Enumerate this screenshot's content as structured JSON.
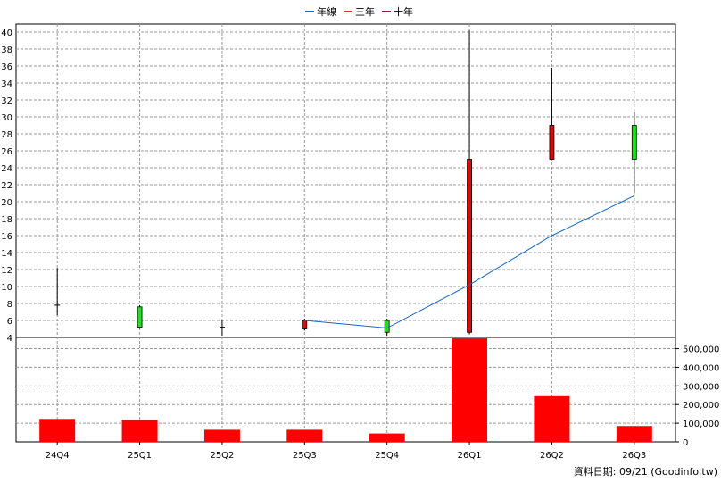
{
  "chart_data": {
    "type": "candlestick",
    "categories": [
      "24Q4",
      "25Q1",
      "25Q2",
      "25Q3",
      "25Q4",
      "26Q1",
      "26Q2",
      "26Q3"
    ],
    "legend": [
      {
        "name": "年線",
        "color": "#1565c0"
      },
      {
        "name": "三年",
        "color": "#d32f2f"
      },
      {
        "name": "十年",
        "color": "#8e1a4a"
      }
    ],
    "legend_position": "top-center",
    "grid": true,
    "price": {
      "ylim": [
        4,
        41
      ],
      "yticks": [
        "4",
        "6",
        "8",
        "10",
        "12",
        "14",
        "16",
        "18",
        "20",
        "22",
        "24",
        "26",
        "28",
        "30",
        "32",
        "34",
        "36",
        "38",
        "40"
      ],
      "candles": [
        {
          "open": 7.8,
          "close": 7.8,
          "high": 12.2,
          "low": 6.6
        },
        {
          "open": 5.2,
          "close": 7.6,
          "high": 7.8,
          "low": 5.0
        },
        {
          "open": 5.2,
          "close": 5.2,
          "high": 6.0,
          "low": 4.2
        },
        {
          "open": 6.0,
          "close": 5.0,
          "high": 6.2,
          "low": 4.8
        },
        {
          "open": 4.6,
          "close": 6.0,
          "high": 6.2,
          "low": 4.2
        },
        {
          "open": 25.0,
          "close": 4.6,
          "high": 40.2,
          "low": 4.4
        },
        {
          "open": 29.0,
          "close": 25.0,
          "high": 35.8,
          "low": 25.0
        },
        {
          "open": 25.0,
          "close": 29.0,
          "high": 30.6,
          "low": 21.0
        }
      ],
      "up_color": "#22dd22",
      "down_color": "#cc1111",
      "series": [
        {
          "name": "年線",
          "values": [
            null,
            null,
            null,
            6.0,
            5.1,
            10.2,
            16.0,
            20.7
          ]
        }
      ]
    },
    "volume": {
      "ylim": [
        0,
        560000
      ],
      "yticks": [
        "0",
        "100,000",
        "200,000",
        "300,000",
        "400,000",
        "500,000"
      ],
      "values": [
        123000,
        117000,
        65000,
        65000,
        45000,
        555000,
        245000,
        85000
      ],
      "bar_color": "#ff0000"
    }
  },
  "footer": {
    "date_label": "資料日期: 09/21",
    "source": "(Goodinfo.tw)"
  }
}
